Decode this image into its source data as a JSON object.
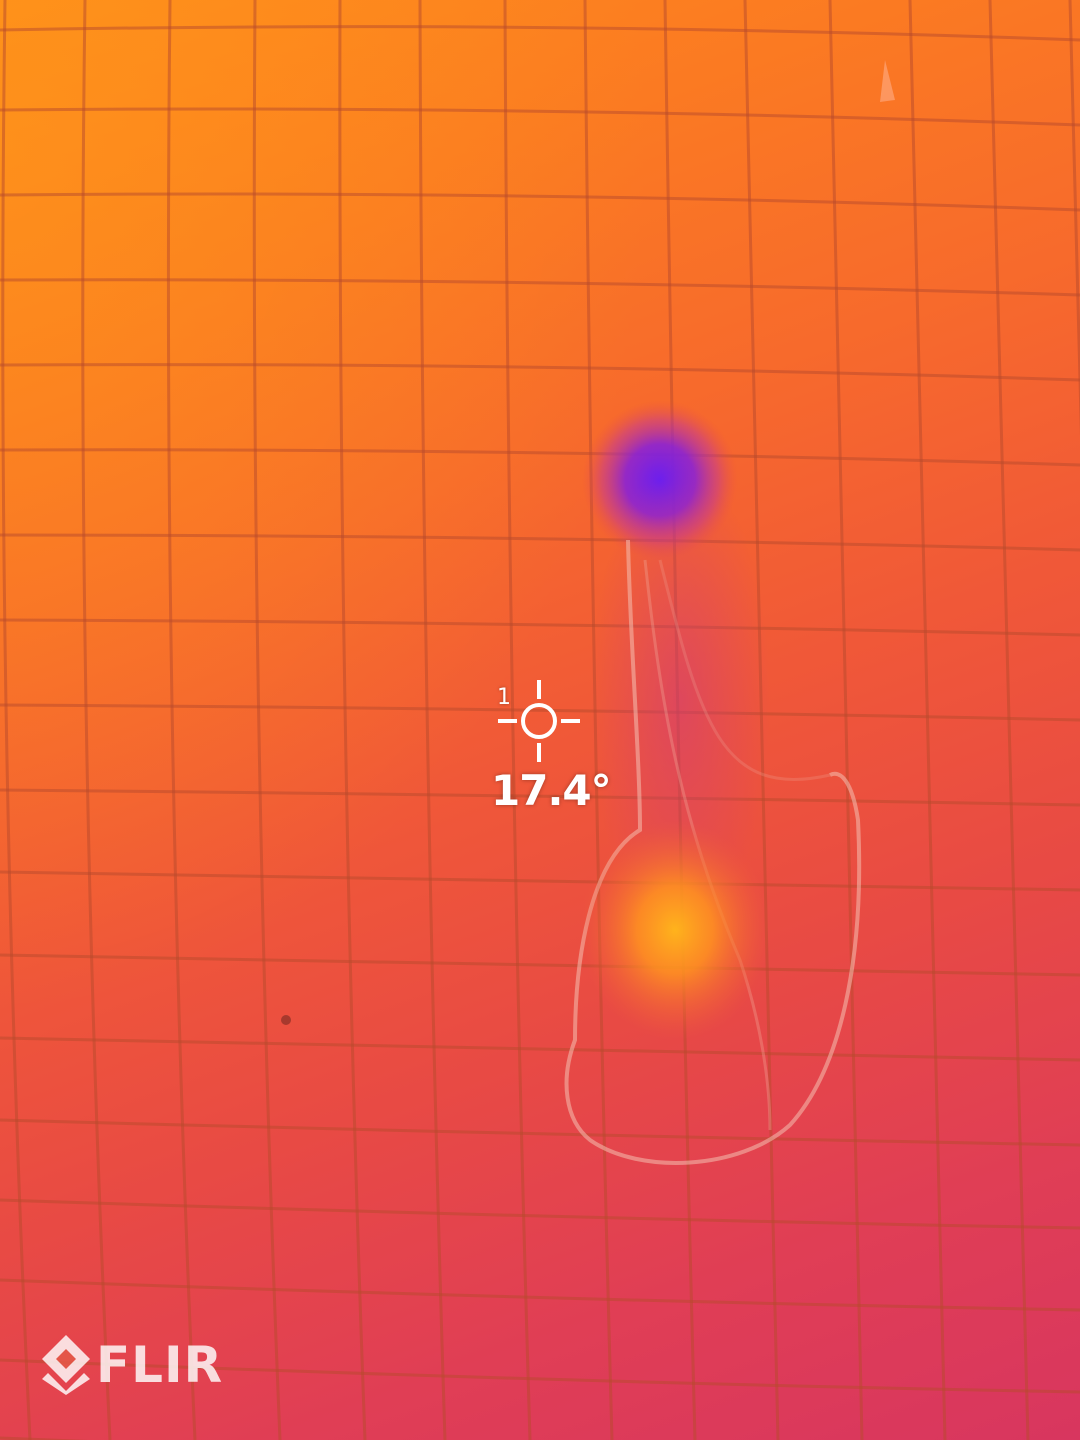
{
  "measurement": {
    "spot_index": "1",
    "spot_temperature": "17.4°"
  },
  "brand": {
    "name": "FLIR",
    "logo_icon": "flir-diamond-logo-icon"
  },
  "colors": {
    "hot": "#ffb21a",
    "warm": "#f76a2c",
    "mid": "#e84a44",
    "cool": "#d8365f",
    "cold": "#7a1ee6",
    "overlay_text": "#ffffff"
  },
  "icons": {
    "reticle": "crosshair-spot-meter-icon"
  }
}
